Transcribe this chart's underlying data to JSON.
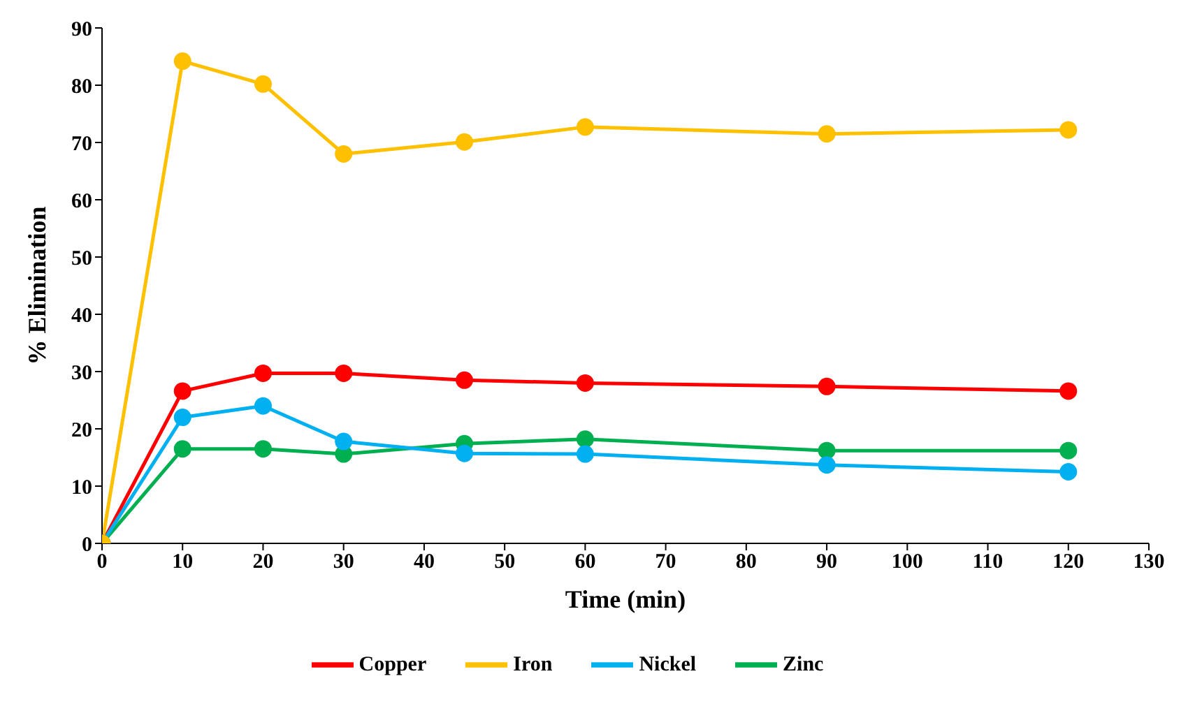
{
  "chart_data": {
    "type": "line",
    "xlabel": "Time (min)",
    "ylabel": "% Elimination",
    "x": [
      0,
      10,
      20,
      30,
      45,
      60,
      90,
      120
    ],
    "series": [
      {
        "name": "Copper",
        "color": "#ff0000",
        "values": [
          0,
          26.6,
          29.7,
          29.7,
          28.5,
          28,
          27.4,
          26.6
        ]
      },
      {
        "name": "Zinc",
        "color": "#00b050",
        "values": [
          0,
          16.5,
          16.5,
          15.6,
          17.4,
          18.2,
          16.2,
          16.2
        ]
      },
      {
        "name": "Nickel",
        "color": "#00b0f0",
        "values": [
          0,
          22,
          24,
          17.8,
          15.7,
          15.6,
          13.7,
          12.5
        ]
      },
      {
        "name": "Iron",
        "color": "#ffc000",
        "values": [
          0,
          84.2,
          80.2,
          68,
          70.1,
          72.7,
          71.5,
          72.2
        ]
      }
    ],
    "xlim": [
      0,
      130
    ],
    "xticks": [
      0,
      10,
      20,
      30,
      40,
      50,
      60,
      70,
      80,
      90,
      100,
      110,
      120,
      130
    ],
    "ylim": [
      0,
      90
    ],
    "yticks": [
      0,
      10,
      20,
      30,
      40,
      50,
      60,
      70,
      80,
      90
    ],
    "grid": false,
    "legend": "bottom",
    "marker": "circle",
    "line_style": "solid"
  }
}
